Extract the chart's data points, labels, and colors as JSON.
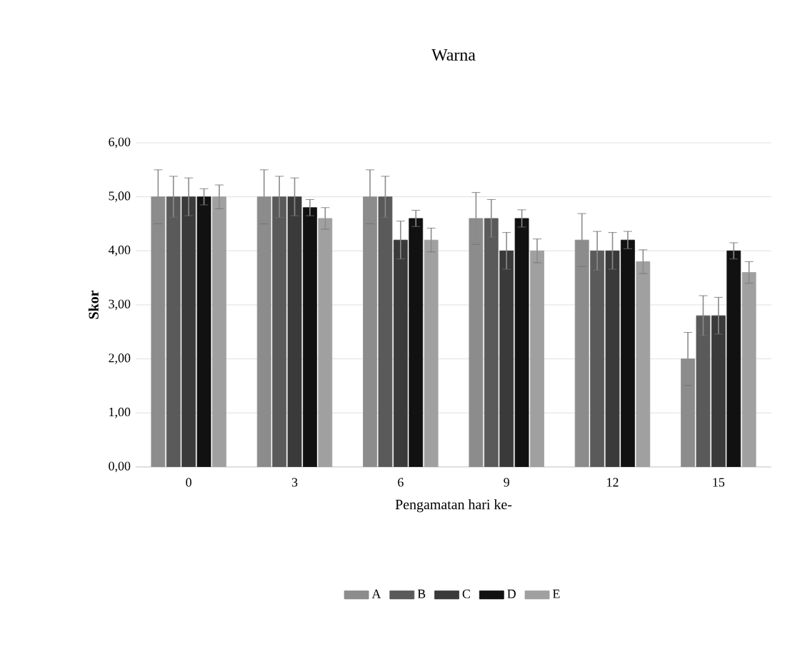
{
  "chart_data": {
    "type": "bar",
    "title": "Warna",
    "xlabel": "Pengamatan hari ke-",
    "ylabel": "Skor",
    "categories": [
      "0",
      "3",
      "6",
      "9",
      "12",
      "15"
    ],
    "series": [
      {
        "name": "A",
        "color": "#8c8c8c",
        "values": [
          5,
          5,
          5,
          4.6,
          4.2,
          2.0
        ],
        "errors": [
          0.5,
          0.5,
          0.5,
          0.48,
          0.49,
          0.49
        ]
      },
      {
        "name": "B",
        "color": "#5a5a5a",
        "values": [
          5,
          5,
          5,
          4.6,
          4.0,
          2.8
        ],
        "errors": [
          0.38,
          0.38,
          0.38,
          0.35,
          0.36,
          0.37
        ]
      },
      {
        "name": "C",
        "color": "#3a3a3a",
        "values": [
          5,
          5,
          4.2,
          4.0,
          4.0,
          2.8
        ],
        "errors": [
          0.35,
          0.35,
          0.35,
          0.34,
          0.34,
          0.34
        ]
      },
      {
        "name": "D",
        "color": "#111111",
        "values": [
          5,
          4.8,
          4.6,
          4.6,
          4.2,
          4.0
        ],
        "errors": [
          0.15,
          0.15,
          0.15,
          0.16,
          0.16,
          0.15
        ]
      },
      {
        "name": "E",
        "color": "#a0a0a0",
        "values": [
          5,
          4.6,
          4.2,
          4.0,
          3.8,
          3.6
        ],
        "errors": [
          0.22,
          0.2,
          0.22,
          0.22,
          0.22,
          0.2
        ]
      }
    ],
    "ylim": [
      0,
      6
    ],
    "yticks": [
      {
        "value": 0,
        "label": "0,00"
      },
      {
        "value": 1,
        "label": "1,00"
      },
      {
        "value": 2,
        "label": "2,00"
      },
      {
        "value": 3,
        "label": "3,00"
      },
      {
        "value": 4,
        "label": "4,00"
      },
      {
        "value": 5,
        "label": "5,00"
      },
      {
        "value": 6,
        "label": "6,00"
      }
    ],
    "grid": "y",
    "legend": "bottom"
  }
}
